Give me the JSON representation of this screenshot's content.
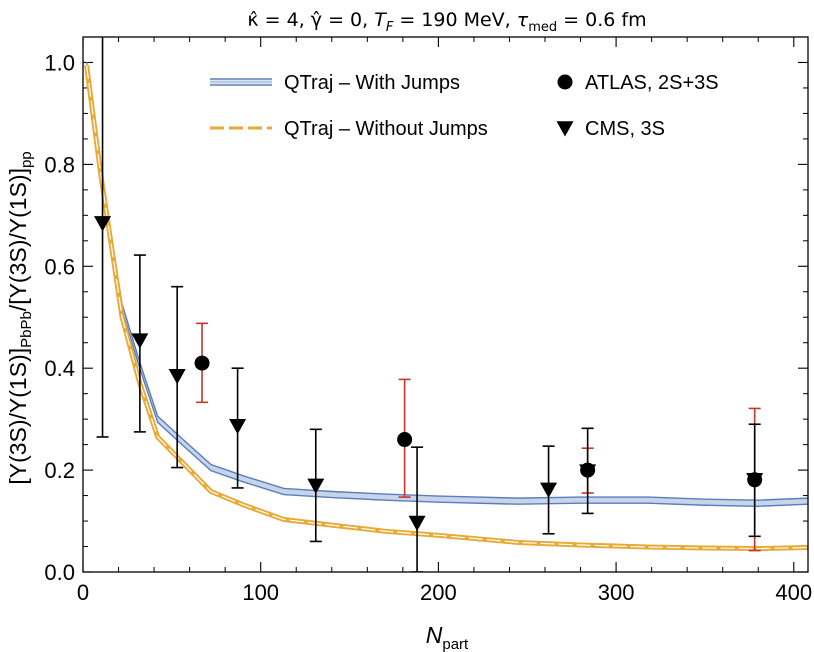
{
  "chart_data": {
    "type": "line",
    "title": "κ̂ = 4, γ̂ = 0, T_F = 190 MeV, τ_med = 0.6 fm",
    "title_parts": {
      "kappa": "κ̂ = 4, ",
      "gamma": "γ̂ = 0, ",
      "tf_sym": "T",
      "tf_sub": "F",
      "tf_val": " = 190 MeV, ",
      "tau_sym": "τ",
      "tau_sub": "med",
      "tau_val": " = 0.6 fm"
    },
    "xlabel": "N_part",
    "xlabel_parts": {
      "main": "N",
      "sub": "part"
    },
    "ylabel": "[Υ(3S)/Υ(1S)]_PbPb/[Υ(3S)/Υ(1S)]_pp",
    "ylabel_parts": {
      "p1": "[Υ(3S)/Υ(1S)]",
      "s1": "PbPb",
      "p2": "/[Υ(3S)/Υ(1S)]",
      "s2": "pp"
    },
    "xlim": [
      0,
      408
    ],
    "ylim": [
      0,
      1.05
    ],
    "xticks": [
      0,
      100,
      200,
      300,
      400
    ],
    "xtick_labels": [
      "0",
      "100",
      "200",
      "300",
      "400"
    ],
    "yticks": [
      0.0,
      0.2,
      0.4,
      0.6,
      0.8,
      1.0
    ],
    "ytick_labels": [
      "0.0",
      "0.2",
      "0.4",
      "0.6",
      "0.8",
      "1.0"
    ],
    "legend_position": "top-right",
    "series": [
      {
        "name": "QTraj – With Jumps",
        "style": "band",
        "color": "#5b7fbb",
        "x": [
          2,
          10,
          22,
          32,
          42,
          56,
          72,
          90,
          113,
          140,
          170,
          200,
          245,
          280,
          318,
          350,
          380,
          408
        ],
        "y": [
          0.995,
          0.78,
          0.52,
          0.405,
          0.3,
          0.255,
          0.205,
          0.183,
          0.158,
          0.152,
          0.147,
          0.143,
          0.139,
          0.141,
          0.141,
          0.137,
          0.135,
          0.139
        ],
        "band_halfwidth": 0.006
      },
      {
        "name": "QTraj – Without Jumps",
        "style": "dashed",
        "color": "#e8a935",
        "x": [
          2,
          10,
          22,
          32,
          42,
          56,
          72,
          90,
          113,
          140,
          170,
          200,
          245,
          280,
          318,
          350,
          380,
          408
        ],
        "y": [
          0.995,
          0.78,
          0.5,
          0.37,
          0.265,
          0.215,
          0.158,
          0.132,
          0.103,
          0.092,
          0.08,
          0.072,
          0.058,
          0.053,
          0.049,
          0.047,
          0.046,
          0.048
        ]
      },
      {
        "name": "ATLAS, 2S+3S",
        "style": "markers",
        "marker": "circle",
        "color": "#000000",
        "errcolor": "#c0392b",
        "points": [
          {
            "x": 67,
            "y": 0.41,
            "lo": 0.333,
            "hi": 0.488
          },
          {
            "x": 181,
            "y": 0.26,
            "lo": 0.147,
            "hi": 0.378
          },
          {
            "x": 284,
            "y": 0.2,
            "lo": 0.155,
            "hi": 0.243
          },
          {
            "x": 378,
            "y": 0.181,
            "lo": 0.042,
            "hi": 0.321
          }
        ]
      },
      {
        "name": "CMS, 3S",
        "style": "markers",
        "marker": "triangle-down",
        "color": "#000000",
        "errcolor": "#000000",
        "points": [
          {
            "x": 11,
            "y": 0.685,
            "lo": 0.265,
            "hi": 1.06
          },
          {
            "x": 32,
            "y": 0.455,
            "lo": 0.275,
            "hi": 0.622
          },
          {
            "x": 53,
            "y": 0.385,
            "lo": 0.205,
            "hi": 0.56
          },
          {
            "x": 87,
            "y": 0.287,
            "lo": 0.165,
            "hi": 0.4
          },
          {
            "x": 131,
            "y": 0.17,
            "lo": 0.06,
            "hi": 0.28
          },
          {
            "x": 188,
            "y": 0.097,
            "lo": 0.0,
            "hi": 0.245
          },
          {
            "x": 262,
            "y": 0.162,
            "lo": 0.075,
            "hi": 0.247
          },
          {
            "x": 284,
            "y": 0.198,
            "lo": 0.115,
            "hi": 0.282
          },
          {
            "x": 378,
            "y": 0.181,
            "lo": 0.07,
            "hi": 0.29
          }
        ]
      }
    ]
  }
}
